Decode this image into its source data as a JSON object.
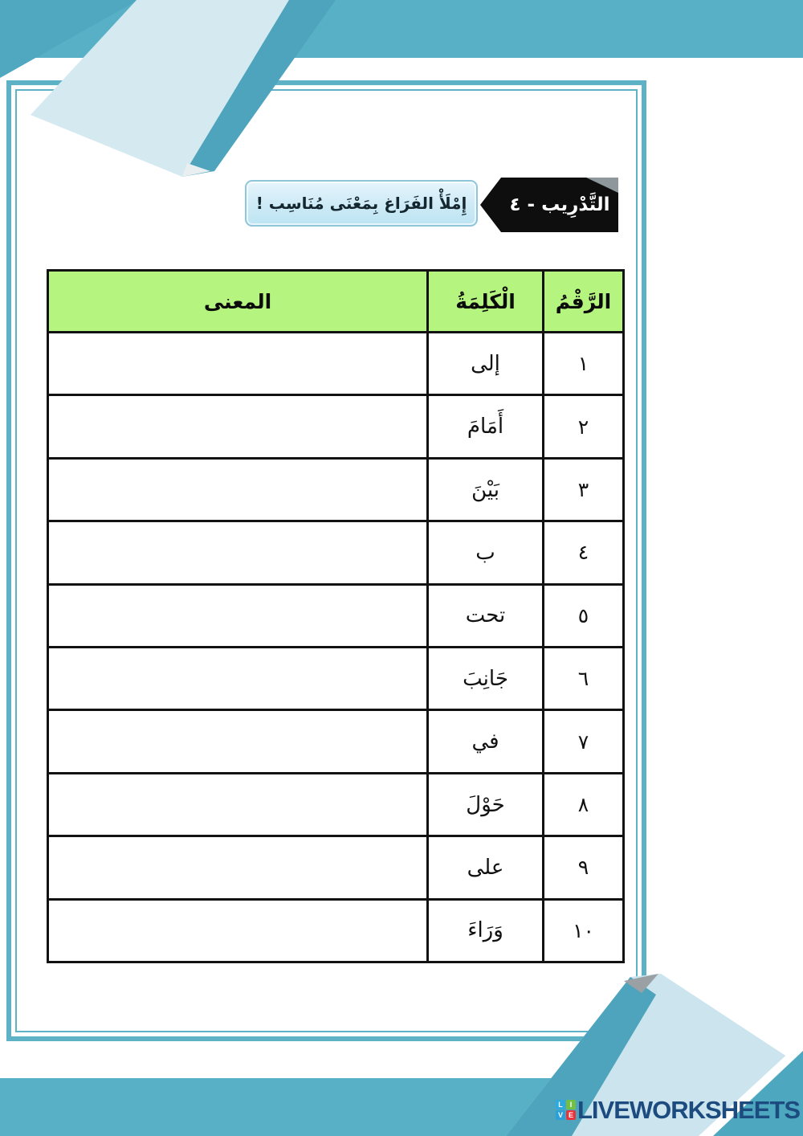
{
  "header": {
    "exercise_label": "التَّدْرِيب - ٤",
    "instruction": "إِمْلَأْ الفَرَاغ بِمَعْنَى مُنَاسِب !"
  },
  "table": {
    "headers": {
      "number": "الرَّقْمُ",
      "word": "الْكَلِمَةُ",
      "meaning": "المعنى"
    },
    "rows": [
      {
        "number": "١",
        "word": "إلى",
        "meaning": ""
      },
      {
        "number": "٢",
        "word": "أَمَامَ",
        "meaning": ""
      },
      {
        "number": "٣",
        "word": "بَيْنَ",
        "meaning": ""
      },
      {
        "number": "٤",
        "word": "ب",
        "meaning": ""
      },
      {
        "number": "٥",
        "word": "تحت",
        "meaning": ""
      },
      {
        "number": "٦",
        "word": "جَانِبَ",
        "meaning": ""
      },
      {
        "number": "٧",
        "word": "في",
        "meaning": ""
      },
      {
        "number": "٨",
        "word": "حَوْلَ",
        "meaning": ""
      },
      {
        "number": "٩",
        "word": "على",
        "meaning": ""
      },
      {
        "number": "١٠",
        "word": "وَرَاءَ",
        "meaning": ""
      }
    ]
  },
  "footer": {
    "brand": "LIVEWORKSHEETS",
    "logo_letters": [
      "L",
      "I",
      "V",
      "E"
    ]
  },
  "colors": {
    "teal_band": "#57b0c6",
    "frame": "#5db2c5",
    "fold_light": "#d5e9f1",
    "fold_dark": "#4da4bc",
    "table_header_green": "#b5f47e",
    "banner_black": "#0e0e0e",
    "instruction_blue": "#cdeaf6",
    "brand_navy": "#1c4b80"
  }
}
